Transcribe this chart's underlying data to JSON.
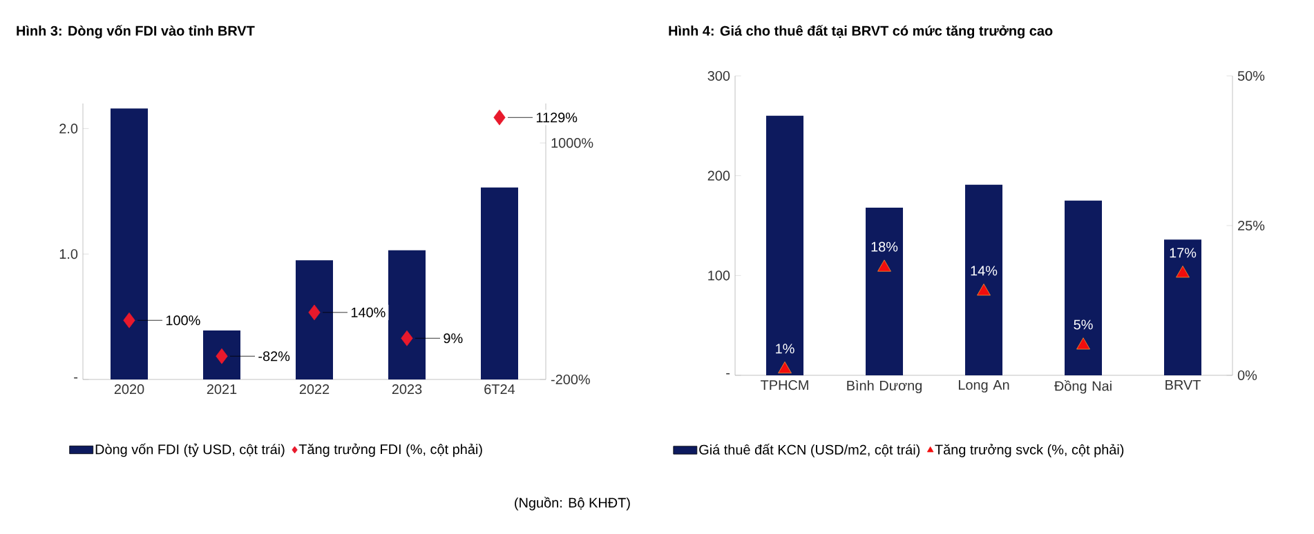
{
  "chart_data": [
    {
      "type": "bar",
      "title": "Hình 3: Dòng vốn FDI vào tỉnh BRVT",
      "categories": [
        "2020",
        "2021",
        "2022",
        "2023",
        "6T24"
      ],
      "series": [
        {
          "name": "Dòng vốn FDI (tỷ USD, cột trái)",
          "type": "bar",
          "color": "#0d1a5e",
          "values": [
            2.16,
            0.39,
            0.95,
            1.03,
            1.53
          ]
        },
        {
          "name": "Tăng trưởng FDI (%, cột phải)",
          "type": "scatter",
          "axis": "y2",
          "marker": "diamond",
          "color": "#e8192c",
          "values": [
            100,
            -82,
            140,
            9,
            1129
          ],
          "value_labels": [
            "100%",
            "-82%",
            "140%",
            "9%",
            "1129%"
          ]
        }
      ],
      "ylim": [
        0,
        2.2
      ],
      "yticks": [
        {
          "value": 0,
          "label": "-"
        },
        {
          "value": 1,
          "label": "1.0"
        },
        {
          "value": 2,
          "label": "2.0"
        }
      ],
      "y2lim": [
        -200,
        1200
      ],
      "y2ticks": [
        {
          "value": -200,
          "label": "-200%"
        },
        {
          "value": 1000,
          "label": "1000%"
        }
      ],
      "legend": "bottom",
      "annotations": [
        "(Nguồn: Bộ KHĐT)"
      ]
    },
    {
      "type": "bar",
      "title": "Hình 4: Giá cho thuê đất tại BRVT có mức tăng trưởng cao",
      "categories": [
        "TPHCM",
        "Bình Dương",
        "Long An",
        "Đồng Nai",
        "BRVT"
      ],
      "series": [
        {
          "name": "Giá thuê đất KCN (USD/m2, cột trái)",
          "type": "bar",
          "color": "#0d1a5e",
          "values": [
            260,
            168,
            191,
            175,
            136
          ]
        },
        {
          "name": "Tăng trưởng svck (%, cột phải)",
          "type": "scatter",
          "axis": "y2",
          "marker": "triangle",
          "color": "#f20d0d",
          "values": [
            1,
            18,
            14,
            5,
            17
          ],
          "value_labels": [
            "1%",
            "18%",
            "14%",
            "5%",
            "17%"
          ]
        }
      ],
      "ylim": [
        0,
        300
      ],
      "yticks": [
        {
          "value": 0,
          "label": "-"
        },
        100,
        200,
        300
      ],
      "y2lim": [
        0,
        50
      ],
      "y2ticks": [
        {
          "value": 0,
          "label": "0%"
        },
        {
          "value": 25,
          "label": "25%"
        },
        {
          "value": 50,
          "label": "50%"
        }
      ],
      "legend": "bottom"
    }
  ]
}
